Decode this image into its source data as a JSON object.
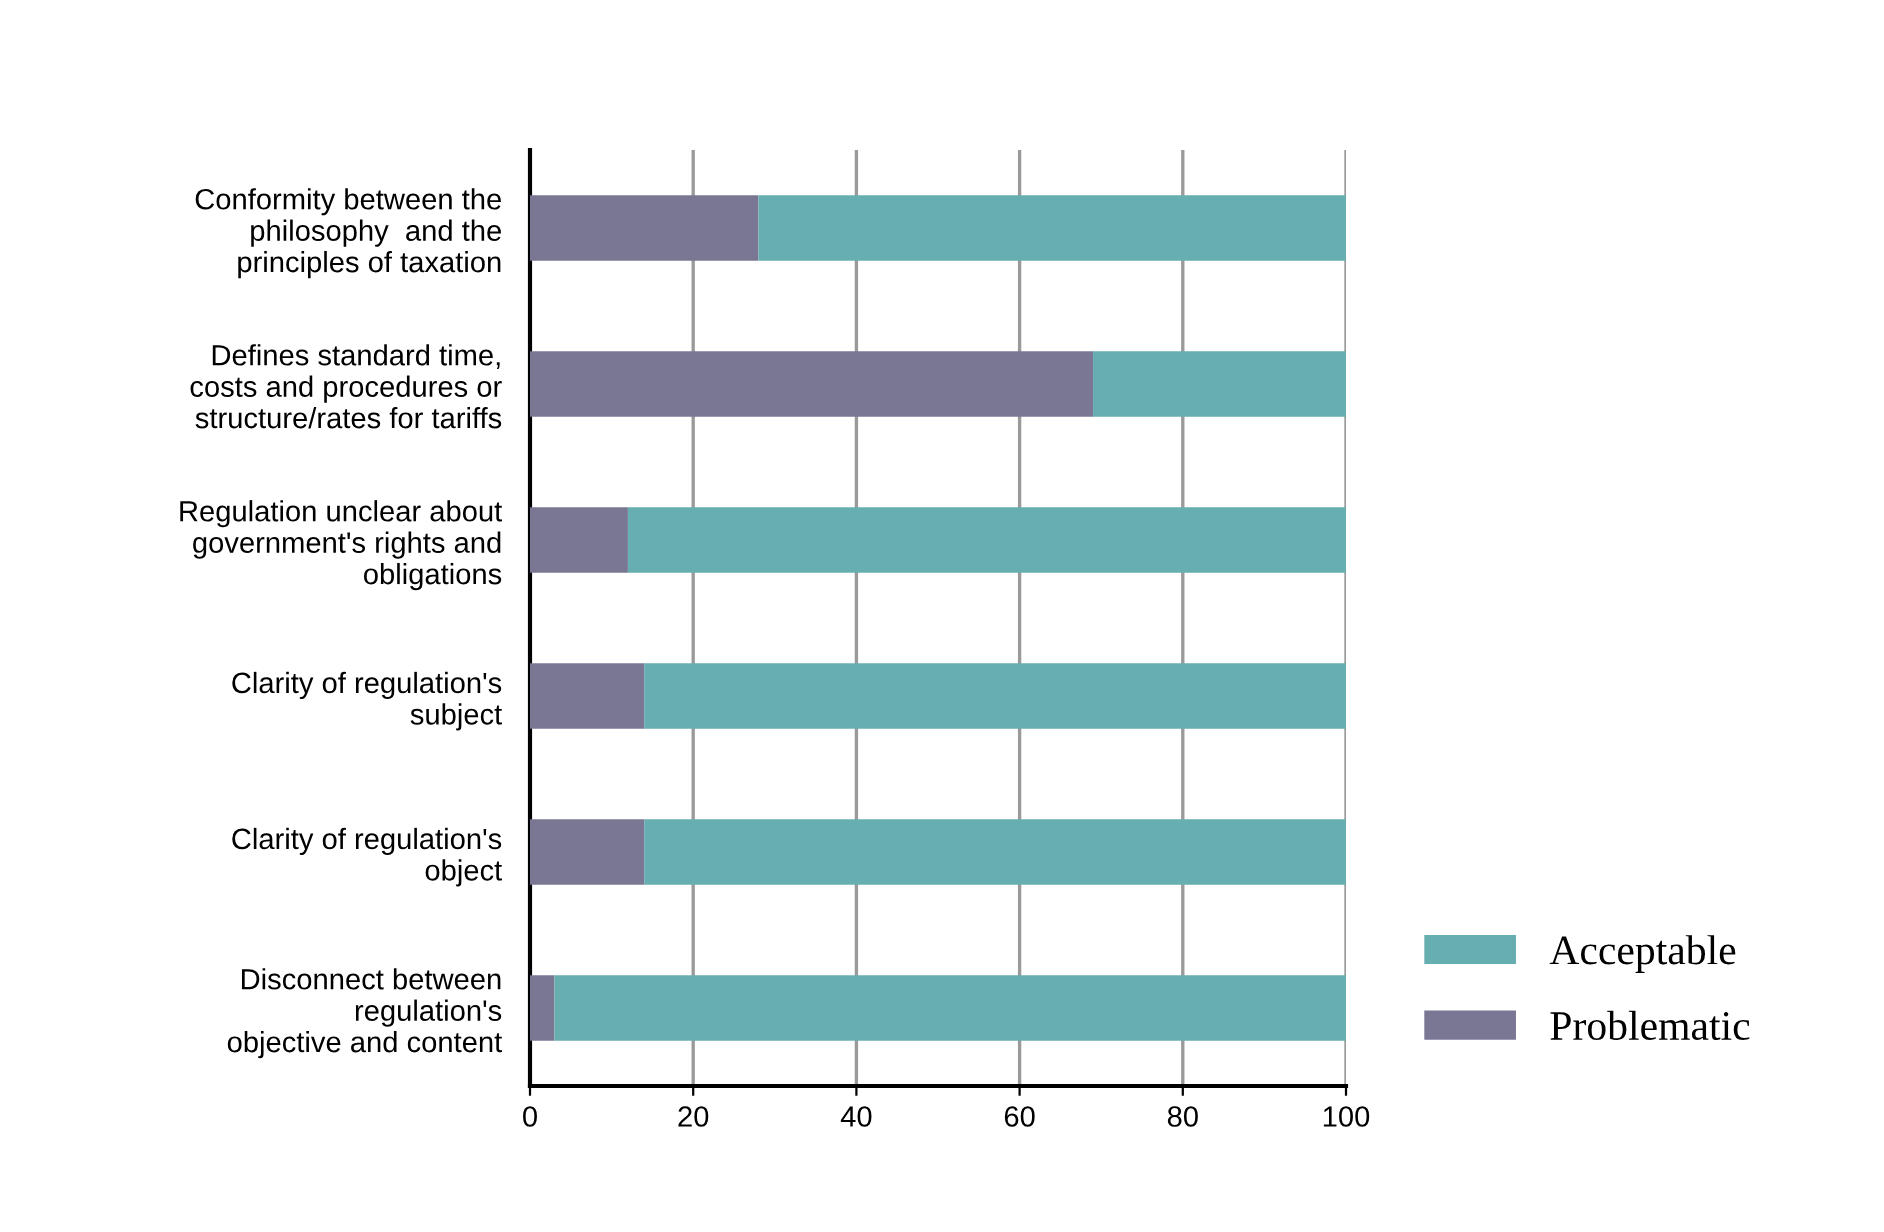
{
  "chart_data": {
    "type": "bar",
    "orientation": "horizontal",
    "stacked": true,
    "categories": [
      "Conformity between the\nphilosophy  and the\nprinciples of taxation",
      "Defines standard time,\ncosts and procedures or\nstructure/rates for tariffs",
      "Regulation unclear about\ngovernment's rights and\nobligations",
      "Clarity of regulation's\nsubject",
      "Clarity of regulation's\nobject",
      "Disconnect between\nregulation's\nobjective and content"
    ],
    "series": [
      {
        "name": "Problematic",
        "color": "#7a7794",
        "values": [
          28,
          69,
          12,
          14,
          14,
          3
        ]
      },
      {
        "name": "Acceptable",
        "color": "#67aeb1",
        "values": [
          72,
          31,
          88,
          86,
          86,
          97
        ]
      }
    ],
    "xlim": [
      0,
      100
    ],
    "xticks": [
      0,
      20,
      40,
      60,
      80,
      100
    ],
    "grid": "x",
    "legend": "bottom right"
  }
}
